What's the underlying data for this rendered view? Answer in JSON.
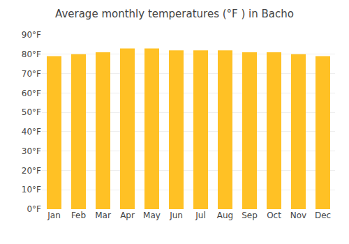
{
  "chart_data": {
    "type": "bar",
    "title": "Average monthly temperatures (°F ) in Bacho",
    "categories": [
      "Jan",
      "Feb",
      "Mar",
      "Apr",
      "May",
      "Jun",
      "Jul",
      "Aug",
      "Sep",
      "Oct",
      "Nov",
      "Dec"
    ],
    "values": [
      79,
      80,
      81,
      83,
      83,
      82,
      82,
      82,
      81,
      81,
      80,
      79
    ],
    "color": "#FFC125",
    "ylim": [
      0,
      90
    ],
    "yticks": [
      {
        "value": 0,
        "label": "0°F"
      },
      {
        "value": 10,
        "label": "10°F"
      },
      {
        "value": 20,
        "label": "20°F"
      },
      {
        "value": 30,
        "label": "30°F"
      },
      {
        "value": 40,
        "label": "40°F"
      },
      {
        "value": 50,
        "label": "50°F"
      },
      {
        "value": 60,
        "label": "60°F"
      },
      {
        "value": 70,
        "label": "70°F"
      },
      {
        "value": 80,
        "label": "80°F"
      },
      {
        "value": 90,
        "label": "90°F"
      }
    ],
    "grid": true
  }
}
